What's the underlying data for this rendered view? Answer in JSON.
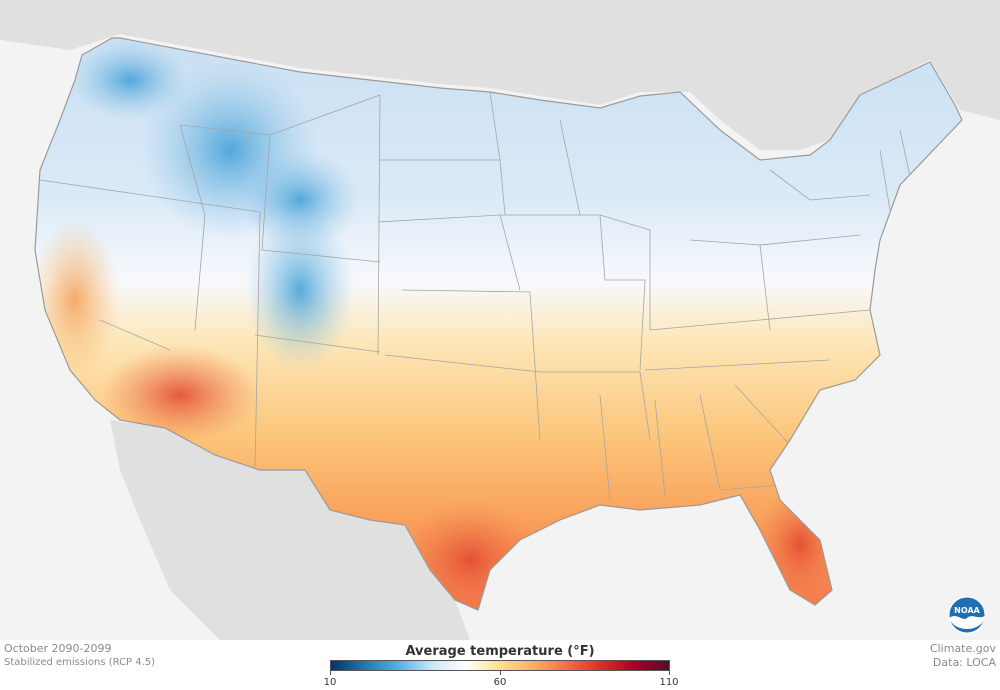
{
  "period": "October 2090-2099",
  "scenario": "Stabilized emissions (RCP 4.5)",
  "source_site": "Climate.gov",
  "data_source": "Data: LOCA",
  "logo": {
    "name": "noaa-logo",
    "text": "NOAA"
  },
  "legend": {
    "title": "Average temperature (°F)",
    "min": 10,
    "mid": 60,
    "max": 110,
    "ticks": [
      "10",
      "60",
      "110"
    ],
    "colors": [
      "#08306b",
      "#1f78b4",
      "#4fb3e8",
      "#cde6f5",
      "#ffffff",
      "#fee08b",
      "#fdae61",
      "#f46d43",
      "#d73027",
      "#a50026",
      "#5a0a2a"
    ]
  },
  "colors": {
    "land_outside": "#dedede",
    "water": "#f3f3f3",
    "border": "#9a9a9a",
    "noaa_blue": "#1f6fb2"
  }
}
